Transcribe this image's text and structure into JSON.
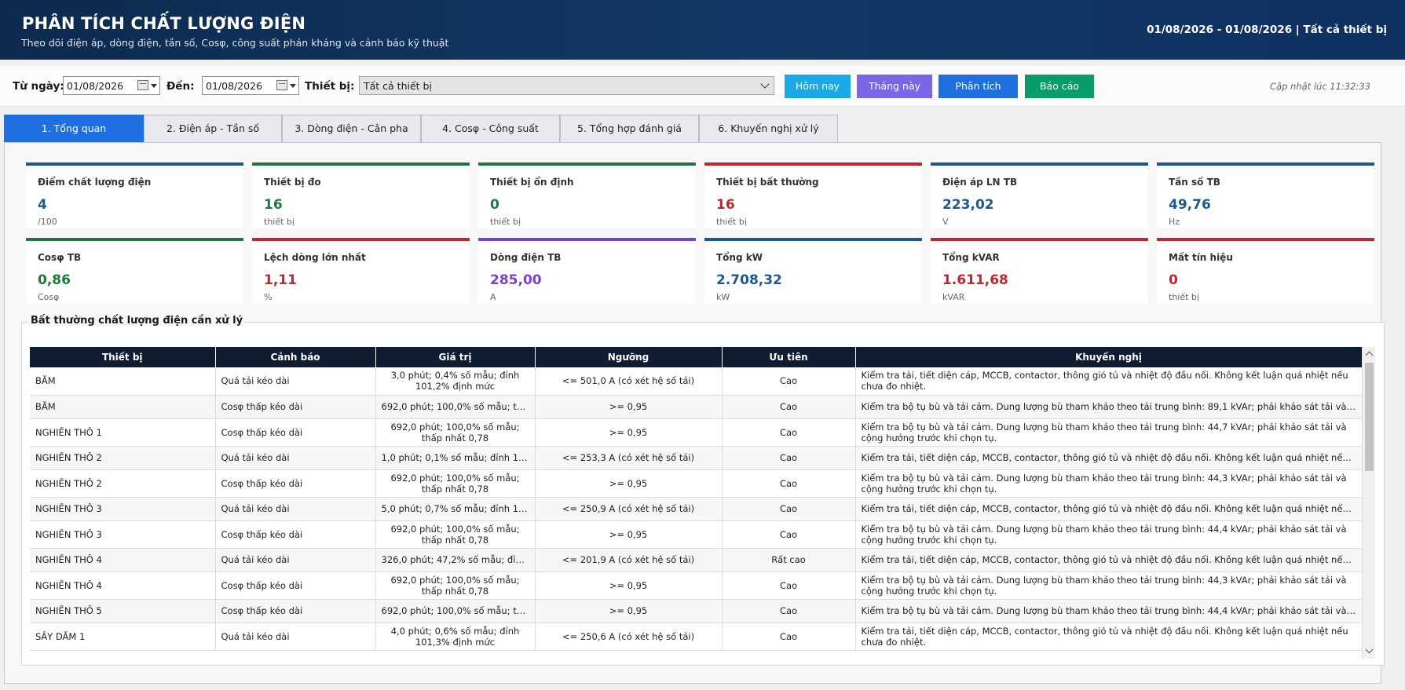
{
  "header": {
    "title": "PHÂN TÍCH CHẤT LƯỢNG ĐIỆN",
    "subtitle": "Theo dõi điện áp, dòng điện, tần số, Cosφ, công suất phản kháng và cảnh báo kỹ thuật",
    "range": "01/08/2026 - 01/08/2026  |  Tất cả thiết bị"
  },
  "toolbar": {
    "from_label": "Từ ngày:",
    "from_value": "01/08/2026",
    "to_label": "Đến:",
    "to_value": "01/08/2026",
    "device_label": "Thiết bị:",
    "device_value": "Tất cả thiết bị",
    "btn_today": "Hôm nay",
    "btn_month": "Tháng này",
    "btn_analyze": "Phân tích",
    "btn_report": "Báo cáo",
    "updated": "Cập nhật lúc 11:32:33",
    "colors": {
      "today": "#1aa9e6",
      "month": "#7a67e8",
      "analyze": "#1f6fe0",
      "report": "#089c6b"
    }
  },
  "tabs": [
    "1. Tổng quan",
    "2. Điện áp - Tần số",
    "3. Dòng điện - Cân pha",
    "4. Cosφ - Công suất",
    "5. Tổng hợp đánh giá",
    "6. Khuyến nghị xử lý"
  ],
  "cards": [
    {
      "label": "Điểm chất lượng điện",
      "value": "4",
      "unit": "/100",
      "color": "#1a5a8f",
      "bar": "#1a5a8f"
    },
    {
      "label": "Thiết bị đo",
      "value": "16",
      "unit": "thiết bị",
      "color": "#1e7a3c",
      "bar": "#1e7a3c"
    },
    {
      "label": "Thiết bị ổn định",
      "value": "0",
      "unit": "thiết bị",
      "color": "#1e7a3c",
      "bar": "#1e7a3c"
    },
    {
      "label": "Thiết bị bất thường",
      "value": "16",
      "unit": "thiết bị",
      "color": "#c0262d",
      "bar": "#c0262d"
    },
    {
      "label": "Điện áp LN TB",
      "value": "223,02",
      "unit": "V",
      "color": "#1a5a8f",
      "bar": "#1a5a8f"
    },
    {
      "label": "Tần số TB",
      "value": "49,76",
      "unit": "Hz",
      "color": "#1a5a8f",
      "bar": "#1a5a8f"
    },
    {
      "label": "Cosφ TB",
      "value": "0,86",
      "unit": "Cosφ",
      "color": "#1e7a3c",
      "bar": "#1e7a3c"
    },
    {
      "label": "Lệch dòng lớn nhất",
      "value": "1,11",
      "unit": "%",
      "color": "#c0262d",
      "bar": "#c0262d"
    },
    {
      "label": "Dòng điện TB",
      "value": "285,00",
      "unit": "A",
      "color": "#7b3fd9",
      "bar": "#7b3fd9"
    },
    {
      "label": "Tổng kW",
      "value": "2.708,32",
      "unit": "kW",
      "color": "#1a5a8f",
      "bar": "#1a5a8f"
    },
    {
      "label": "Tổng kVAR",
      "value": "1.611,68",
      "unit": "kVAR",
      "color": "#c0262d",
      "bar": "#c0262d"
    },
    {
      "label": "Mất tín hiệu",
      "value": "0",
      "unit": "thiết bị",
      "color": "#c0262d",
      "bar": "#c0262d"
    }
  ],
  "section": {
    "title": "Bất thường chất lượng điện cần xử lý",
    "columns": [
      "Thiết bị",
      "Cảnh báo",
      "Giá trị",
      "Ngưỡng",
      "Ưu tiên",
      "Khuyến nghị"
    ],
    "rows": [
      {
        "device": "BĂM",
        "warning": "Quá tải kéo dài",
        "value": "3,0 phút; 0,4% số mẫu; đỉnh 101,2% định mức",
        "threshold": "<= 501,0 A (có xét hệ số tải)",
        "priority": "Cao",
        "rec": "Kiểm tra tải, tiết diện cáp, MCCB, contactor, thông gió tủ và nhiệt độ đầu nối. Không kết luận quá nhiệt nếu chưa đo nhiệt."
      },
      {
        "device": "BĂM",
        "warning": "Cosφ thấp kéo dài",
        "value": "692,0 phút; 100,0% số mẫu; thấp ...",
        "threshold": ">= 0,95",
        "priority": "Cao",
        "rec": "Kiểm tra bộ tụ bù và tải cảm. Dung lượng bù tham khảo theo tải trung bình: 89,1 kVAr; phải khảo sát tải và cộng hưở..."
      },
      {
        "device": "NGHIỀN THÔ 1",
        "warning": "Cosφ thấp kéo dài",
        "value": "692,0 phút; 100,0% số mẫu; thấp nhất 0,78",
        "threshold": ">= 0,95",
        "priority": "Cao",
        "rec": "Kiểm tra bộ tụ bù và tải cảm. Dung lượng bù tham khảo theo tải trung bình: 44,7 kVAr; phải khảo sát tải và cộng hưởng trước khi chọn tụ."
      },
      {
        "device": "NGHIỀN THÔ 2",
        "warning": "Quá tải kéo dài",
        "value": "1,0 phút; 0,1% số mẫu; đỉnh 101,0...",
        "threshold": "<= 253,3 A (có xét hệ số tải)",
        "priority": "Cao",
        "rec": "Kiểm tra tải, tiết diện cáp, MCCB, contactor, thông gió tủ và nhiệt độ đầu nối. Không kết luận quá nhiệt nếu chưa đo ..."
      },
      {
        "device": "NGHIỀN THÔ 2",
        "warning": "Cosφ thấp kéo dài",
        "value": "692,0 phút; 100,0% số mẫu; thấp nhất 0,78",
        "threshold": ">= 0,95",
        "priority": "Cao",
        "rec": "Kiểm tra bộ tụ bù và tải cảm. Dung lượng bù tham khảo theo tải trung bình: 44,3 kVAr; phải khảo sát tải và cộng hưởng trước khi chọn tụ."
      },
      {
        "device": "NGHIỀN THÔ 3",
        "warning": "Quá tải kéo dài",
        "value": "5,0 phút; 0,7% số mẫu; đỉnh 101,8...",
        "threshold": "<= 250,9 A (có xét hệ số tải)",
        "priority": "Cao",
        "rec": "Kiểm tra tải, tiết diện cáp, MCCB, contactor, thông gió tủ và nhiệt độ đầu nối. Không kết luận quá nhiệt nếu chưa đo ..."
      },
      {
        "device": "NGHIỀN THÔ 3",
        "warning": "Cosφ thấp kéo dài",
        "value": "692,0 phút; 100,0% số mẫu; thấp nhất 0,78",
        "threshold": ">= 0,95",
        "priority": "Cao",
        "rec": "Kiểm tra bộ tụ bù và tải cảm. Dung lượng bù tham khảo theo tải trung bình: 44,4 kVAr; phải khảo sát tải và cộng hưởng trước khi chọn tụ."
      },
      {
        "device": "NGHIỀN THÔ 4",
        "warning": "Quá tải kéo dài",
        "value": "326,0 phút; 47,2% số mẫu; đỉnh 1...",
        "threshold": "<= 201,9 A (có xét hệ số tải)",
        "priority": "Rất cao",
        "rec": "Kiểm tra tải, tiết diện cáp, MCCB, contactor, thông gió tủ và nhiệt độ đầu nối. Không kết luận quá nhiệt nếu chưa đo ..."
      },
      {
        "device": "NGHIỀN THÔ 4",
        "warning": "Cosφ thấp kéo dài",
        "value": "692,0 phút; 100,0% số mẫu; thấp nhất 0,78",
        "threshold": ">= 0,95",
        "priority": "Cao",
        "rec": "Kiểm tra bộ tụ bù và tải cảm. Dung lượng bù tham khảo theo tải trung bình: 44,3 kVAr; phải khảo sát tải và cộng hưởng trước khi chọn tụ."
      },
      {
        "device": "NGHIỀN THÔ 5",
        "warning": "Cosφ thấp kéo dài",
        "value": "692,0 phút; 100,0% số mẫu; thấp ...",
        "threshold": ">= 0,95",
        "priority": "Cao",
        "rec": "Kiểm tra bộ tụ bù và tải cảm. Dung lượng bù tham khảo theo tải trung bình: 44,4 kVAr; phải khảo sát tải và cộng hưở..."
      },
      {
        "device": "SẤY DĂM 1",
        "warning": "Quá tải kéo dài",
        "value": "4,0 phút; 0,6% số mẫu; đỉnh 101,3% định mức",
        "threshold": "<= 250,6 A (có xét hệ số tải)",
        "priority": "Cao",
        "rec": "Kiểm tra tải, tiết diện cáp, MCCB, contactor, thông gió tủ và nhiệt độ đầu nối. Không kết luận quá nhiệt nếu chưa đo nhiệt."
      }
    ]
  }
}
